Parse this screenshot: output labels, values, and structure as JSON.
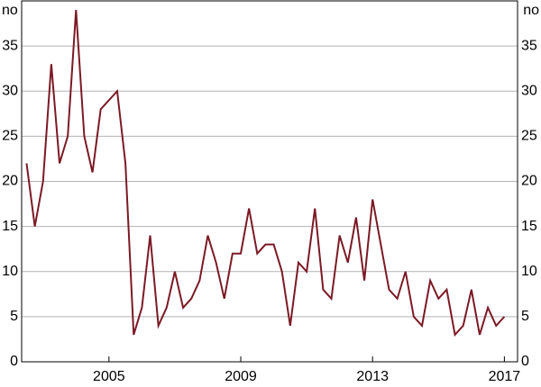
{
  "chart_data": {
    "type": "line",
    "y_unit": "no",
    "x": [
      2002.5,
      2002.75,
      2003,
      2003.25,
      2003.5,
      2003.75,
      2004,
      2004.25,
      2004.5,
      2004.75,
      2005,
      2005.25,
      2005.5,
      2005.75,
      2006,
      2006.25,
      2006.5,
      2006.75,
      2007,
      2007.25,
      2007.5,
      2007.75,
      2008,
      2008.25,
      2008.5,
      2008.75,
      2009,
      2009.25,
      2009.5,
      2009.75,
      2010,
      2010.25,
      2010.5,
      2010.75,
      2011,
      2011.25,
      2011.5,
      2011.75,
      2012,
      2012.25,
      2012.5,
      2012.75,
      2013,
      2013.25,
      2013.5,
      2013.75,
      2014,
      2014.25,
      2014.5,
      2014.75,
      2015,
      2015.25,
      2015.5,
      2015.75,
      2016,
      2016.25,
      2016.5,
      2016.75,
      2017
    ],
    "series": [
      {
        "color": "#7b1a25",
        "values": [
          22,
          15,
          20,
          33,
          22,
          25,
          39,
          25,
          21,
          28,
          29,
          30,
          22,
          3,
          6,
          14,
          4,
          6,
          10,
          6,
          7,
          9,
          14,
          11,
          7,
          12,
          12,
          17,
          12,
          13,
          13,
          10,
          4,
          11,
          10,
          17,
          8,
          7,
          14,
          11,
          16,
          9,
          18,
          13,
          8,
          7,
          10,
          5,
          4,
          9,
          7,
          8,
          3,
          4,
          8,
          3,
          6,
          4,
          5
        ]
      }
    ],
    "xlim": [
      2002.35,
      2017.4
    ],
    "xticks": [
      2005,
      2009,
      2013,
      2017
    ],
    "ylim": [
      0,
      40
    ],
    "yticks": [
      0,
      5,
      10,
      15,
      20,
      25,
      30,
      35
    ],
    "grid": true
  }
}
